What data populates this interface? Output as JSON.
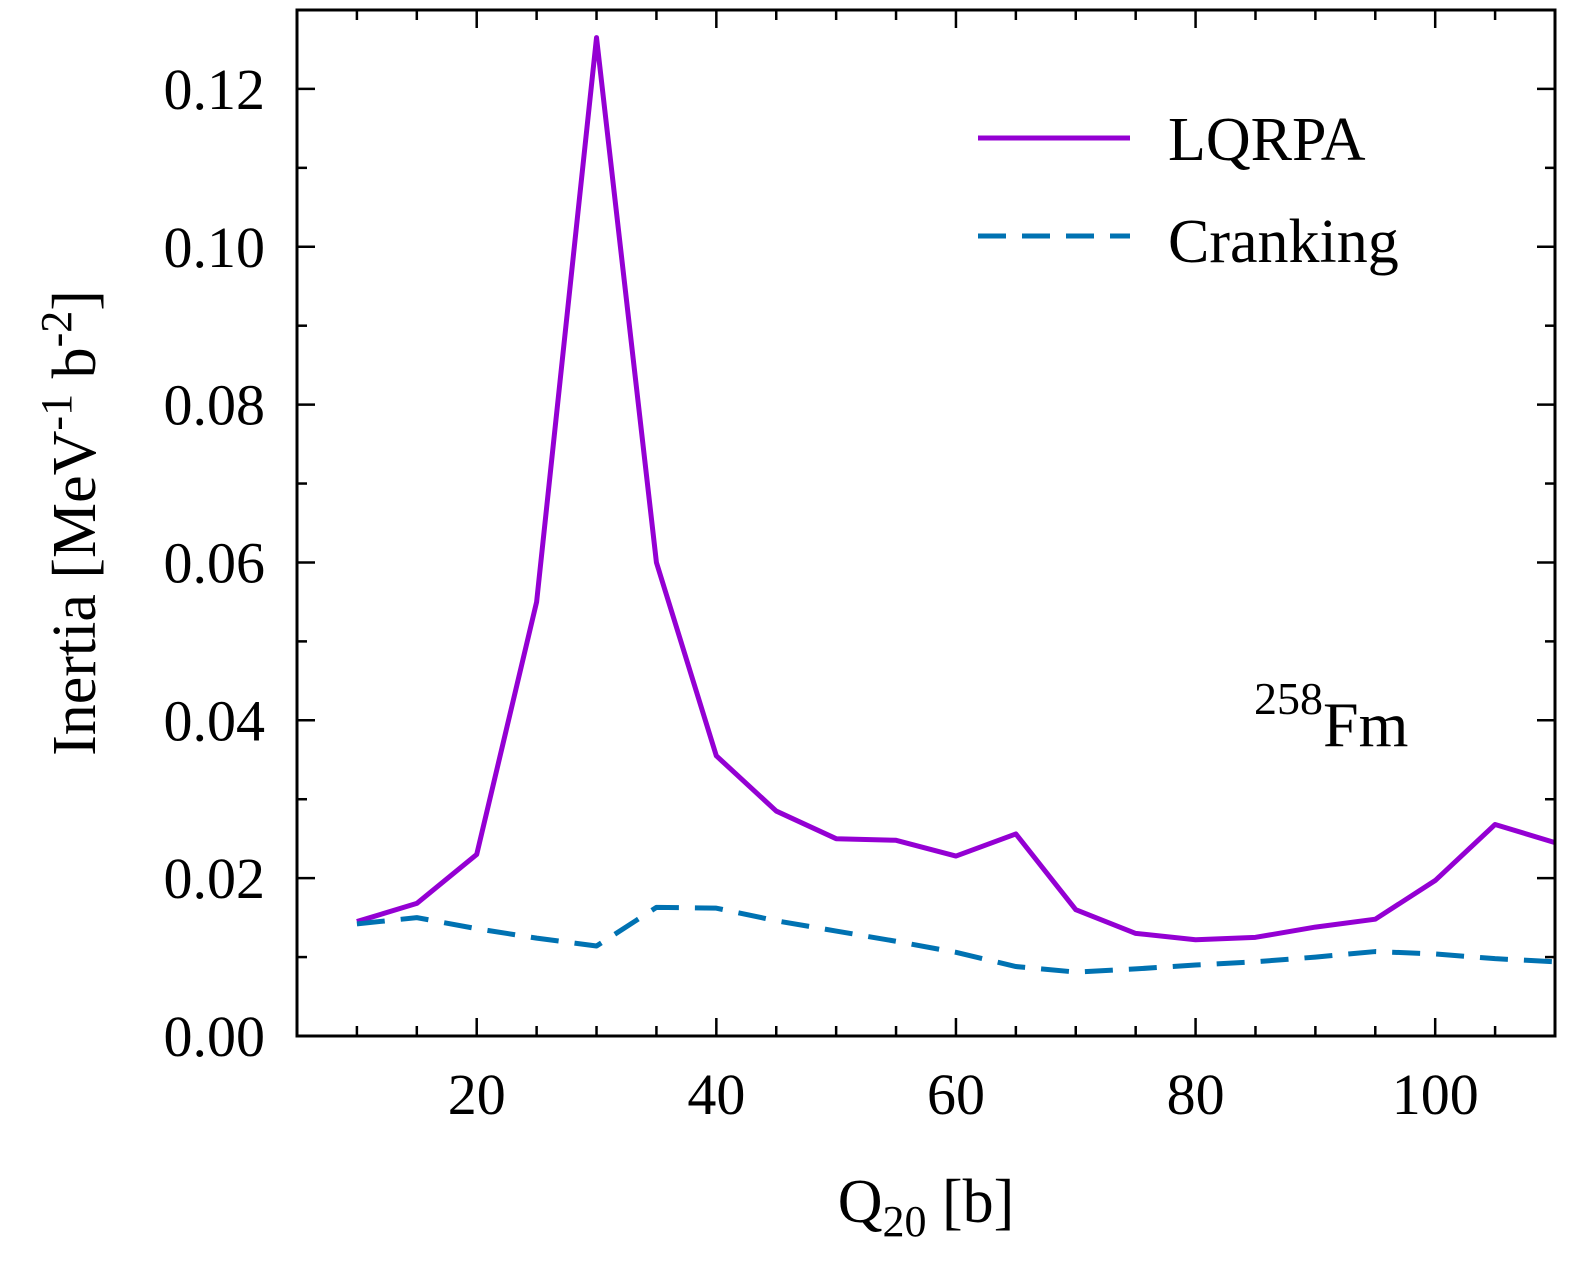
{
  "chart_data": {
    "type": "line",
    "xlabel": {
      "main": "Q",
      "sub": "20",
      "rest": " [b]"
    },
    "ylabel": {
      "main": "Inertia [MeV",
      "sup1": "-1",
      "mid": " b",
      "sup2": "-2",
      "end": "]"
    },
    "xlim": [
      5,
      110
    ],
    "ylim": [
      0,
      0.13
    ],
    "x_ticks": [
      20,
      40,
      60,
      80,
      100
    ],
    "x_tick_labels": [
      "20",
      "40",
      "60",
      "80",
      "100"
    ],
    "y_ticks": [
      0.0,
      0.02,
      0.04,
      0.06,
      0.08,
      0.1,
      0.12
    ],
    "y_tick_labels": [
      "0.00",
      "0.02",
      "0.04",
      "0.06",
      "0.08",
      "0.10",
      "0.12"
    ],
    "x_minor_step": 5,
    "y_minor_step": 0.01,
    "grid": false,
    "legend": {
      "placement": "top-right"
    },
    "annotation": {
      "sup": "258",
      "text": "Fm"
    },
    "series": [
      {
        "name": "LQRPA",
        "color": "#9400D3",
        "style": "solid",
        "x": [
          10,
          15,
          20,
          25,
          30,
          35,
          40,
          45,
          50,
          55,
          60,
          65,
          70,
          75,
          80,
          85,
          90,
          95,
          100,
          105,
          110
        ],
        "y": [
          0.0145,
          0.0168,
          0.023,
          0.055,
          0.1265,
          0.06,
          0.0355,
          0.0285,
          0.025,
          0.0248,
          0.0228,
          0.0256,
          0.016,
          0.013,
          0.0122,
          0.0125,
          0.0138,
          0.0148,
          0.0197,
          0.0268,
          0.0245
        ]
      },
      {
        "name": "Cranking",
        "color": "#0072B2",
        "style": "dashed",
        "x": [
          10,
          15,
          20,
          25,
          30,
          35,
          40,
          45,
          50,
          55,
          60,
          65,
          70,
          75,
          80,
          85,
          90,
          95,
          100,
          105,
          110
        ],
        "y": [
          0.0142,
          0.015,
          0.0136,
          0.0124,
          0.0114,
          0.0163,
          0.0162,
          0.0146,
          0.0133,
          0.012,
          0.0106,
          0.0088,
          0.0081,
          0.0085,
          0.009,
          0.0094,
          0.01,
          0.0107,
          0.0104,
          0.0098,
          0.0094
        ]
      }
    ]
  }
}
